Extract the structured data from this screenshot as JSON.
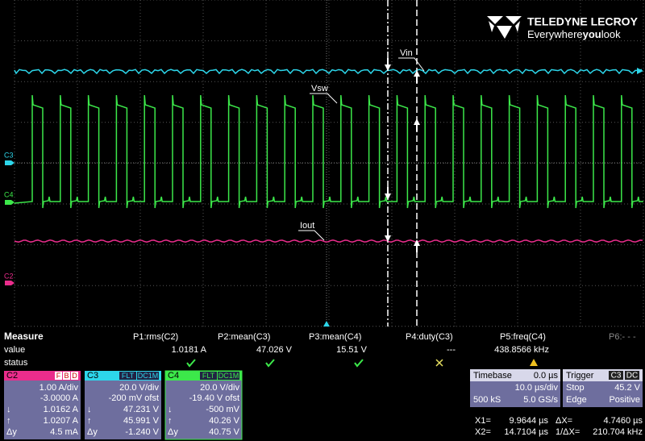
{
  "screen": {
    "labels": {
      "vin": "Vin",
      "vsw": "Vsw",
      "iout": "Iout"
    },
    "channel_markers": [
      "C3",
      "C4",
      "C2"
    ]
  },
  "logo": {
    "brand": "TELEDYNE LECROY",
    "tagline_start": "Everywhere",
    "tagline_bold": "you",
    "tagline_end": "look"
  },
  "measure": {
    "title": "Measure",
    "row_labels": [
      "value",
      "status"
    ],
    "params": [
      {
        "name": "P1:rms(C2)",
        "value": "1.0181 A"
      },
      {
        "name": "P2:mean(C3)",
        "value": "47.026 V"
      },
      {
        "name": "P3:mean(C4)",
        "value": "15.51 V"
      },
      {
        "name": "P4:duty(C3)",
        "value": "---"
      },
      {
        "name": "P5:freq(C4)",
        "value": "438.8566 kHz"
      },
      {
        "name": "P6:- - -"
      }
    ]
  },
  "channels": [
    {
      "name": "C2",
      "flags": [
        "F",
        "B",
        "D"
      ],
      "scale": "1.00 A/div",
      "offset": "-3.0000 A",
      "cursors": [
        {
          "label": "↓",
          "value": "1.0162 A"
        },
        {
          "label": "↑",
          "value": "1.0207 A"
        },
        {
          "label": "Δy",
          "value": "4.5 mA"
        }
      ]
    },
    {
      "name": "C3",
      "flags": [
        "FLT",
        "DC1M"
      ],
      "scale": "20.0 V/div",
      "offset": "-200 mV ofst",
      "cursors": [
        {
          "label": "↓",
          "value": "47.231 V"
        },
        {
          "label": "↑",
          "value": "45.991 V"
        },
        {
          "label": "Δy",
          "value": "-1.240 V"
        }
      ]
    },
    {
      "name": "C4",
      "flags": [
        "FLT",
        "DC1M"
      ],
      "scale": "20.0 V/div",
      "offset": "-19.40 V ofst",
      "cursors": [
        {
          "label": "↓",
          "value": "-500 mV"
        },
        {
          "label": "↑",
          "value": "40.26 V"
        },
        {
          "label": "Δy",
          "value": "40.75 V"
        }
      ]
    }
  ],
  "timebase": {
    "title": "Timebase",
    "delay": "0.0 µs",
    "scale": "10.0 µs/div",
    "samples": "500 kS",
    "rate": "5.0 GS/s"
  },
  "trigger": {
    "title": "Trigger",
    "source": "C3",
    "coupling": "DC",
    "mode": "Stop",
    "level": "45.2 V",
    "type": "Edge",
    "slope": "Positive"
  },
  "cursors": {
    "x1_label": "X1=",
    "x1": "9.9644 µs",
    "dx_label": "ΔX=",
    "dx": "4.7460 µs",
    "x2_label": "X2=",
    "x2": "14.7104 µs",
    "inv_label": "1/ΔX=",
    "inv": "210.704 kHz"
  }
}
